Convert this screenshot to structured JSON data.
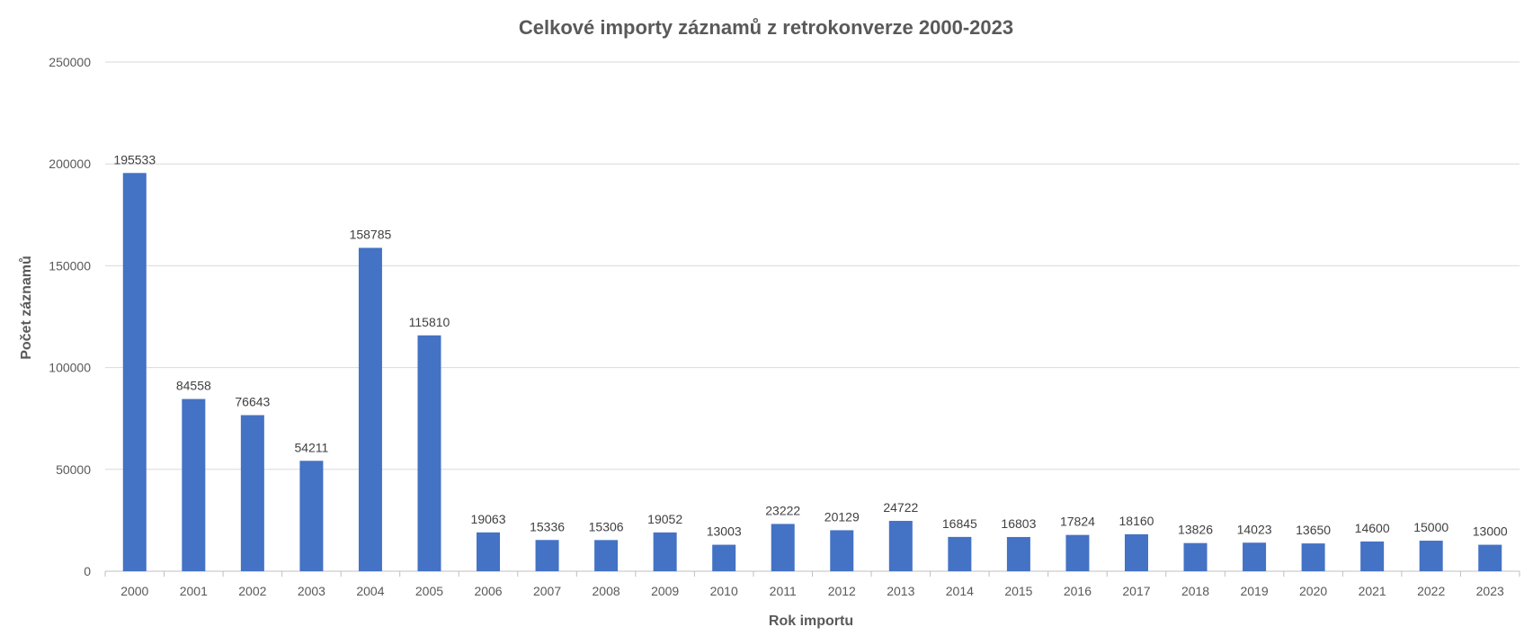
{
  "chart_data": {
    "type": "bar",
    "title": "Celkové importy záznamů z retrokonverze 2000-2023",
    "xlabel": "Rok importu",
    "ylabel": "Počet záznamů",
    "ylim": [
      0,
      250000
    ],
    "yticks": [
      "0",
      "50000",
      "100000",
      "150000",
      "200000",
      "250000"
    ],
    "grid": true,
    "bar_color": "#4472C4",
    "categories": [
      "2000",
      "2001",
      "2002",
      "2003",
      "2004",
      "2005",
      "2006",
      "2007",
      "2008",
      "2009",
      "2010",
      "2011",
      "2012",
      "2013",
      "2014",
      "2015",
      "2016",
      "2017",
      "2018",
      "2019",
      "2020",
      "2021",
      "2022",
      "2023"
    ],
    "values": [
      195533,
      84558,
      76643,
      54211,
      158785,
      115810,
      19063,
      15336,
      15306,
      19052,
      13003,
      23222,
      20129,
      24722,
      16845,
      16803,
      17824,
      18160,
      13826,
      14023,
      13650,
      14600,
      15000,
      13000
    ],
    "data_labels": [
      "195533",
      "84558",
      "76643",
      "54211",
      "158785",
      "115810",
      "19063",
      "15336",
      "15306",
      "19052",
      "13003",
      "23222",
      "20129",
      "24722",
      "16845",
      "16803",
      "17824",
      "18160",
      "13826",
      "14023",
      "13650",
      "14600",
      "15000",
      "13000"
    ]
  }
}
